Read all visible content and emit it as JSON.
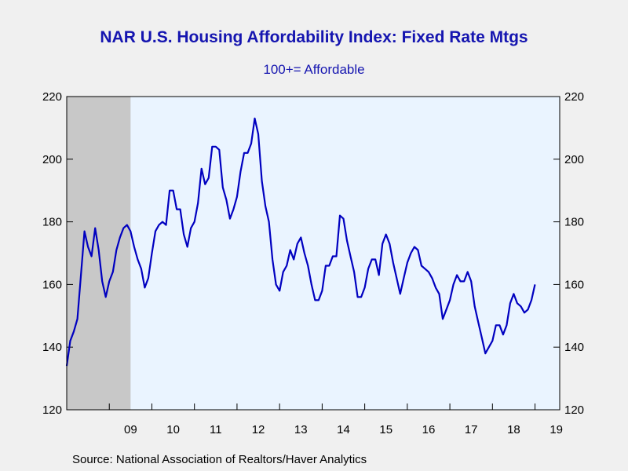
{
  "title": "NAR U.S. Housing Affordability Index: Fixed Rate Mtgs",
  "subtitle": "100+= Affordable",
  "source": "Source:  National Association of Realtors/Haver Analytics",
  "colors": {
    "line": "#0000c0",
    "plot_bg": "#eaf4ff",
    "recession": "#c8c8c8",
    "title": "#1515b0"
  },
  "chart_data": {
    "type": "line",
    "title": "NAR U.S. Housing Affordability Index: Fixed Rate Mtgs",
    "subtitle": "100+= Affordable",
    "ylim": [
      120,
      220
    ],
    "yticks": [
      120,
      140,
      160,
      180,
      200,
      220
    ],
    "y_axes": [
      "left",
      "right"
    ],
    "xlim": [
      2008.0,
      2019.58
    ],
    "xtick_labels": [
      "09",
      "10",
      "11",
      "12",
      "13",
      "14",
      "15",
      "16",
      "17",
      "18",
      "19"
    ],
    "recession_shading": [
      [
        2008.0,
        2009.5
      ]
    ],
    "grid": false,
    "legend": "none",
    "series": [
      {
        "start_year": 2008,
        "start_month": 1,
        "frequency": "monthly",
        "values": [
          134,
          142,
          145,
          149,
          163,
          177,
          172,
          169,
          178,
          171,
          161,
          156,
          161,
          164,
          171,
          175,
          178,
          179,
          177,
          172,
          168,
          165,
          159,
          162,
          170,
          177,
          179,
          180,
          179,
          190,
          190,
          184,
          184,
          176,
          172,
          178,
          180,
          186,
          197,
          192,
          194,
          204,
          204,
          203,
          191,
          187,
          181,
          184,
          188,
          196,
          202,
          202,
          205,
          213,
          208,
          193,
          185,
          180,
          168,
          160,
          158,
          164,
          166,
          171,
          168,
          173,
          175,
          170,
          166,
          160,
          155,
          155,
          158,
          166,
          166,
          169,
          169,
          182,
          181,
          174,
          169,
          164,
          156,
          156,
          159,
          165,
          168,
          168,
          163,
          173,
          176,
          173,
          167,
          162,
          157,
          162,
          167,
          170,
          172,
          171,
          166,
          165,
          164,
          162,
          159,
          157,
          149,
          152,
          155,
          160,
          163,
          161,
          161,
          164,
          161,
          153,
          148,
          143,
          138,
          140,
          142,
          147,
          147,
          144,
          147,
          154,
          157,
          154,
          153,
          151,
          152,
          155,
          160
        ]
      }
    ]
  }
}
